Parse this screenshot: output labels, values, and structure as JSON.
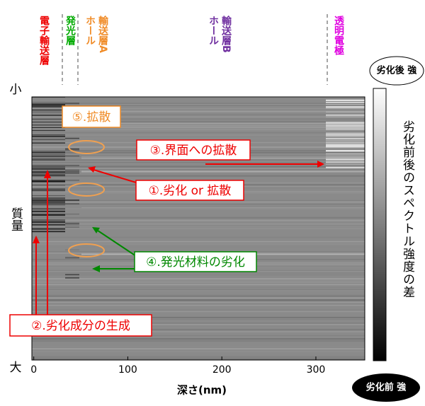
{
  "chart_data": {
    "type": "heatmap",
    "xlabel": "深さ(nm)",
    "xlim": [
      -2,
      352
    ],
    "xticks": [
      0,
      100,
      200,
      300
    ],
    "ylabels": {
      "top": "小",
      "middle": "質量",
      "bottom": "大"
    },
    "layers": [
      "電子輸送層",
      "発光層",
      "ホール\n輸送層A",
      "ホール\n輸送層B",
      "透明電極"
    ],
    "colorbar": {
      "label": "劣化前後のスペクトル強度の差",
      "top": "劣化後 強",
      "bottom": "劣化前 強"
    },
    "annotations": [
      "⑤.拡散",
      "③.界面への拡散",
      "①.劣化 or 拡散",
      "④.発光材料の劣化",
      "②.劣化成分の生成"
    ]
  }
}
